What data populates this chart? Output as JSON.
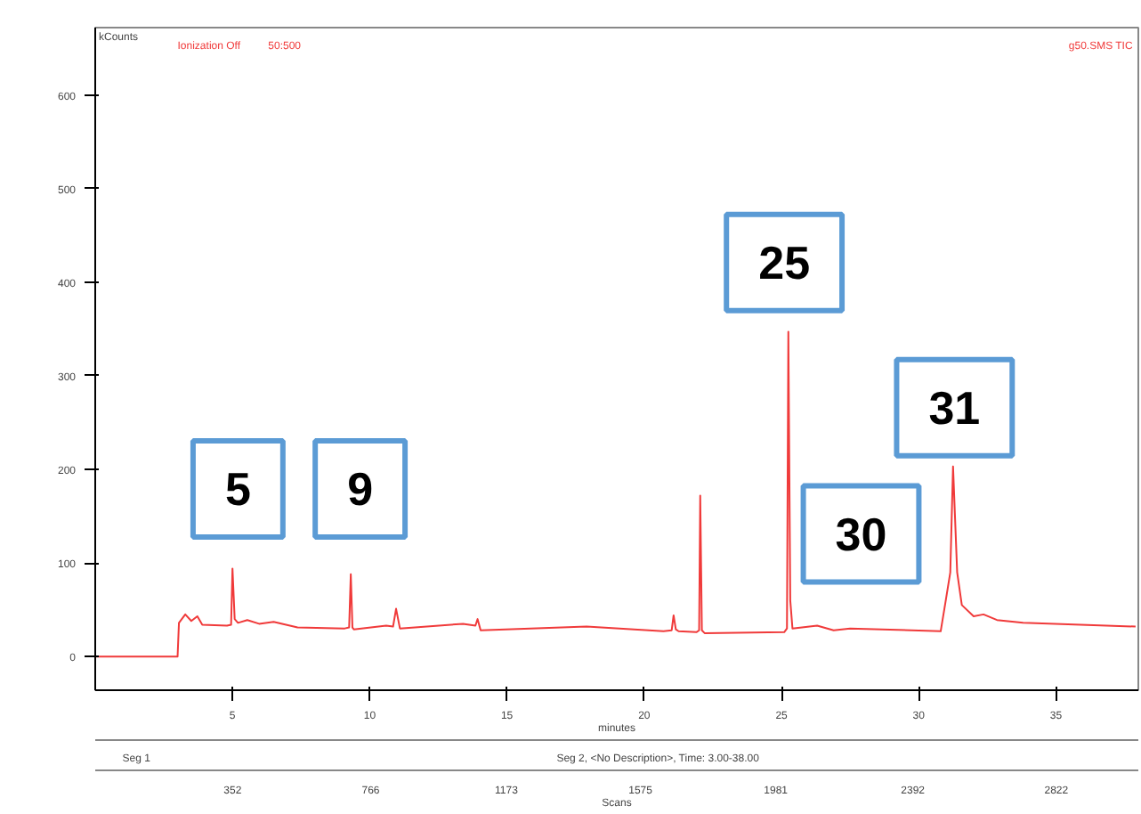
{
  "chart_data": {
    "type": "line",
    "ylabel": "kCounts",
    "xlabel": "minutes",
    "x2label": "Scans",
    "xlim": [
      0,
      38
    ],
    "ylim": [
      -36,
      672
    ],
    "xticks": [
      5,
      10,
      15,
      20,
      25,
      30,
      35
    ],
    "x2lim": [
      -60,
      3068
    ],
    "x2ticks": [
      352,
      766,
      1173,
      1575,
      1981,
      2392,
      2822
    ],
    "yticks": [
      0,
      100,
      200,
      300,
      400,
      500,
      600
    ],
    "grid": false,
    "marker": "none",
    "line_style": "solid",
    "series": [
      {
        "color": "#f03a3a",
        "x": [
          0,
          3.0,
          3.05,
          3.28,
          3.5,
          3.72,
          3.9,
          4.8,
          4.95,
          5.0,
          5.08,
          5.2,
          5.54,
          5.97,
          6.5,
          7.37,
          9.09,
          9.25,
          9.31,
          9.37,
          9.42,
          10.6,
          10.85,
          10.96,
          11.1,
          13.4,
          13.85,
          13.93,
          14.04,
          17.9,
          20.7,
          21.0,
          21.07,
          21.15,
          21.25,
          21.9,
          22.0,
          22.04,
          22.1,
          22.2,
          25.1,
          25.2,
          25.25,
          25.32,
          25.4,
          26.3,
          26.9,
          27.5,
          30.8,
          30.98,
          31.15,
          31.25,
          31.4,
          31.57,
          32.0,
          32.36,
          32.85,
          33.8,
          37.9
        ],
        "values": [
          0,
          0,
          36,
          45,
          38,
          43,
          34,
          33,
          34,
          94,
          40,
          36,
          39,
          35,
          37,
          31,
          30,
          31,
          88,
          31,
          29,
          33,
          32,
          51,
          30,
          35,
          33,
          40,
          28,
          32,
          27,
          28,
          44,
          29,
          27,
          26,
          28,
          172,
          28,
          25,
          26,
          30,
          347,
          60,
          30,
          33,
          28,
          30,
          27,
          59,
          90,
          203,
          90,
          55,
          43,
          45,
          39,
          36,
          32
        ]
      }
    ],
    "annotations": [
      "Ionization Off",
      "50:500",
      "g50.SMS TIC",
      "Seg 1",
      "Seg 2, <No Description>, Time: 3.00-38.00",
      "5",
      "9",
      "25",
      "30",
      "31"
    ]
  }
}
